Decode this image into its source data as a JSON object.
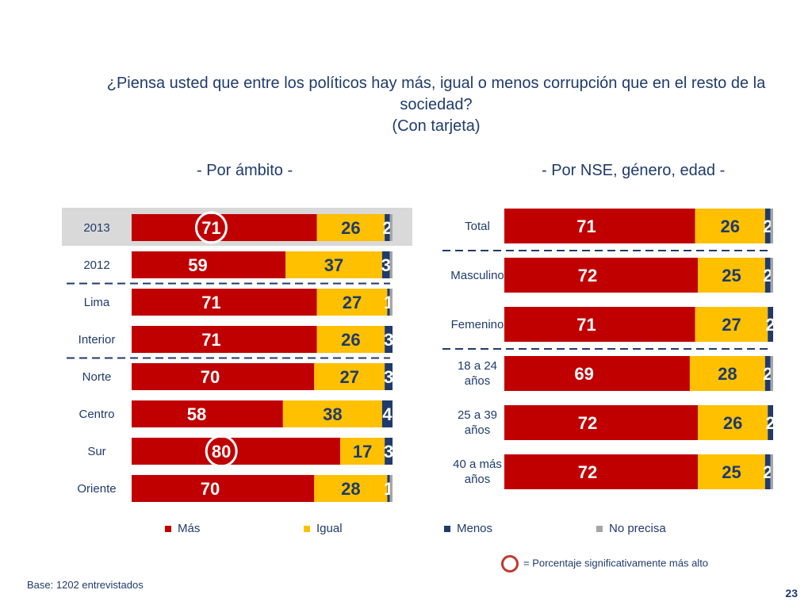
{
  "title_line1": "¿Piensa usted que entre los políticos hay más, igual o menos corrupción que en el resto de la",
  "title_line2": "sociedad?",
  "title_line3": "(Con tarjeta)",
  "left_subtitle": "- Por ámbito -",
  "right_subtitle": "- Por NSE, género, edad -",
  "colors": {
    "mas": "#c00000",
    "igual": "#ffc000",
    "menos": "#1f3b6b",
    "no_precisa": "#a6a6a6",
    "highlight": "#d9d9d9"
  },
  "chart_data": [
    {
      "type": "bar",
      "orientation": "horizontal",
      "stacked": true,
      "title": "- Por ámbito -",
      "categories": [
        "2013",
        "2012",
        "Lima",
        "Interior",
        "Norte",
        "Centro",
        "Sur",
        "Oriente"
      ],
      "series": [
        {
          "name": "Más",
          "values": [
            71,
            59,
            71,
            71,
            70,
            58,
            80,
            70
          ]
        },
        {
          "name": "Igual",
          "values": [
            26,
            37,
            27,
            26,
            27,
            38,
            17,
            28
          ]
        },
        {
          "name": "Menos",
          "values": [
            2,
            3,
            1,
            3,
            3,
            4,
            3,
            1
          ]
        },
        {
          "name": "No precisa",
          "values": [
            1,
            1,
            1,
            0,
            0,
            0,
            0,
            1
          ]
        }
      ],
      "highlighted_row": "2013",
      "circled": [
        {
          "category": "2013",
          "series": "Más"
        },
        {
          "category": "Sur",
          "series": "Más"
        }
      ],
      "separators_after": [
        "2012",
        "Interior"
      ]
    },
    {
      "type": "bar",
      "orientation": "horizontal",
      "stacked": true,
      "title": "- Por NSE, género, edad -",
      "categories": [
        "Total",
        "Masculino",
        "Femenino",
        "18 a 24 años",
        "25 a 39 años",
        "40 a más años"
      ],
      "series": [
        {
          "name": "Más",
          "values": [
            71,
            72,
            71,
            69,
            72,
            72
          ]
        },
        {
          "name": "Igual",
          "values": [
            26,
            25,
            27,
            28,
            26,
            25
          ]
        },
        {
          "name": "Menos",
          "values": [
            2,
            2,
            2,
            2,
            2,
            2
          ]
        },
        {
          "name": "No precisa",
          "values": [
            1,
            1,
            0,
            1,
            0,
            1
          ]
        }
      ],
      "separators_after": [
        "Total",
        "Femenino"
      ]
    }
  ],
  "legend": {
    "mas": "Más",
    "igual": "Igual",
    "menos": "Menos",
    "no_precisa": "No precisa"
  },
  "note": "= Porcentaje significativamente más alto",
  "base": "Base: 1202 entrevistados",
  "page_number": "23"
}
